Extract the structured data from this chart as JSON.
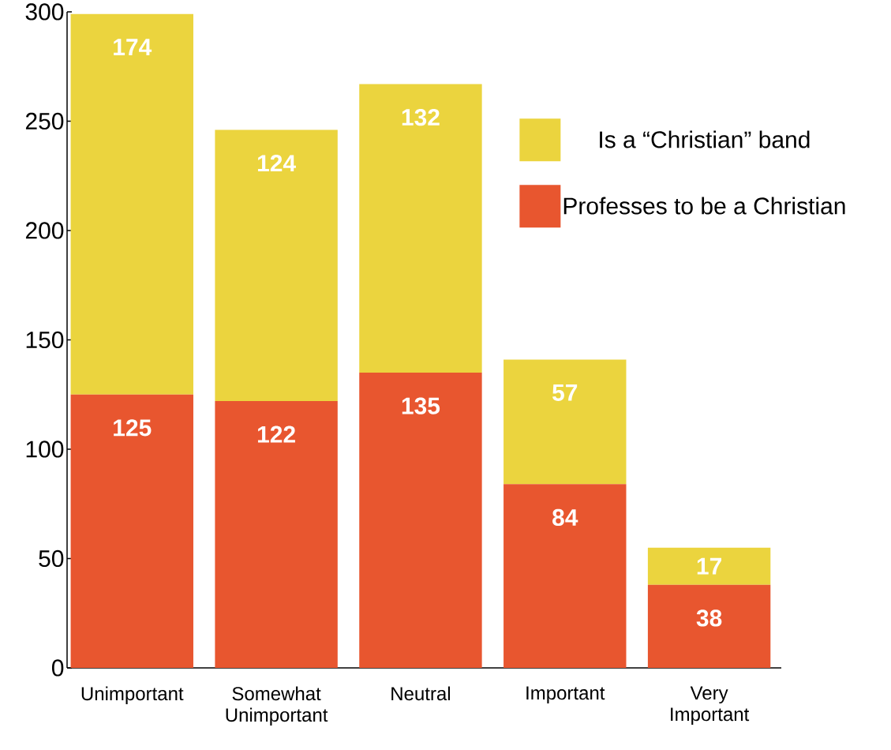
{
  "chart_data": {
    "type": "bar",
    "stacked": true,
    "categories": [
      "Unimportant",
      "Somewhat Unimportant",
      "Neutral",
      "Important",
      "Very Important"
    ],
    "series": [
      {
        "name": "Professes to be a Christian",
        "color": "#e8562f",
        "values": [
          125,
          122,
          135,
          84,
          38
        ]
      },
      {
        "name": "Is a “Christian” band",
        "color": "#ebd43e",
        "values": [
          174,
          124,
          132,
          57,
          17
        ]
      }
    ],
    "ylim": [
      0,
      300
    ],
    "yticks": [
      0,
      50,
      100,
      150,
      200,
      250,
      300
    ],
    "data_labels": true,
    "legend": "top right",
    "grid": false
  }
}
